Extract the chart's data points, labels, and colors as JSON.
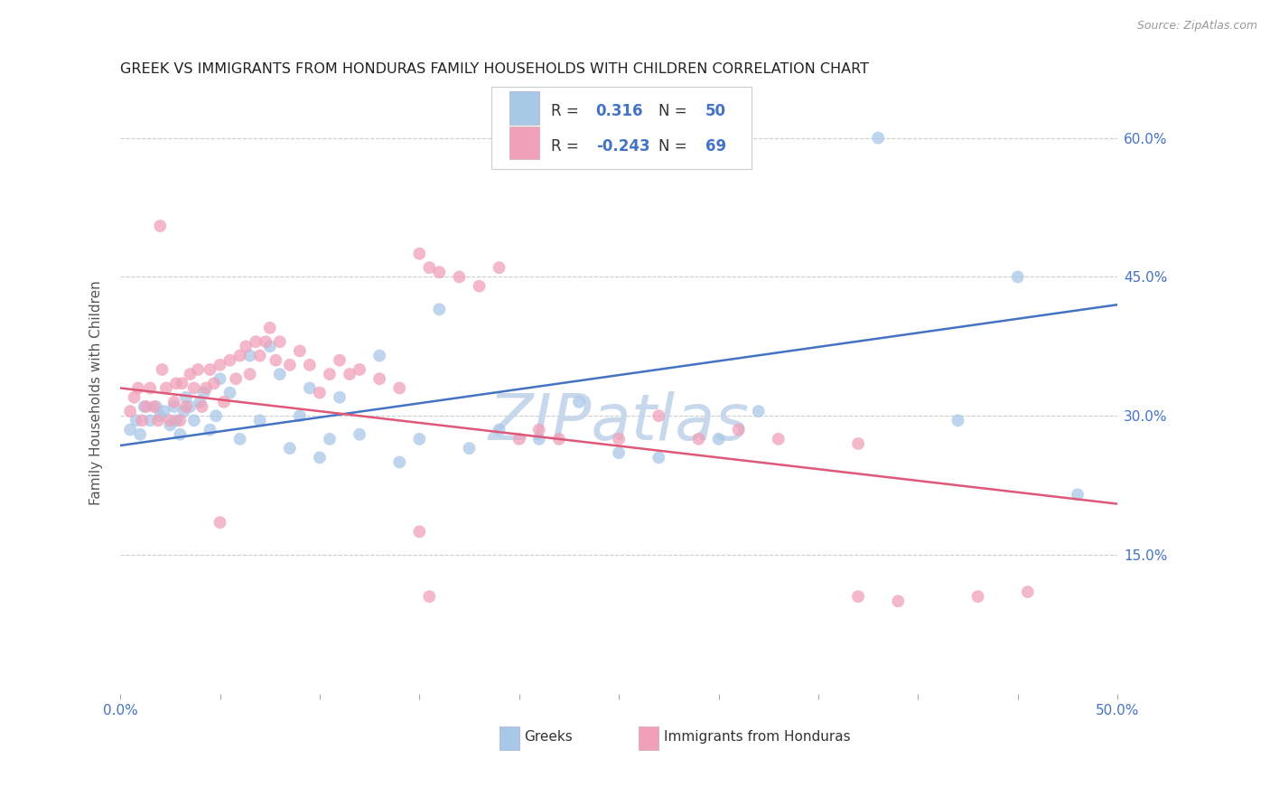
{
  "title": "GREEK VS IMMIGRANTS FROM HONDURAS FAMILY HOUSEHOLDS WITH CHILDREN CORRELATION CHART",
  "source": "Source: ZipAtlas.com",
  "ylabel": "Family Households with Children",
  "x_ticks": [
    0.0,
    0.05,
    0.1,
    0.15,
    0.2,
    0.25,
    0.3,
    0.35,
    0.4,
    0.45,
    0.5
  ],
  "y_ticks": [
    0.0,
    0.15,
    0.3,
    0.45,
    0.6
  ],
  "y_tick_labels_right": [
    "",
    "15.0%",
    "30.0%",
    "45.0%",
    "60.0%"
  ],
  "xlim": [
    0.0,
    0.5
  ],
  "ylim": [
    0.0,
    0.65
  ],
  "blue_R": "0.316",
  "blue_N": "50",
  "pink_R": "-0.243",
  "pink_N": "69",
  "blue_scatter_x": [
    0.005,
    0.008,
    0.01,
    0.012,
    0.015,
    0.018,
    0.02,
    0.022,
    0.025,
    0.027,
    0.028,
    0.03,
    0.032,
    0.033,
    0.035,
    0.037,
    0.04,
    0.042,
    0.045,
    0.048,
    0.05,
    0.055,
    0.06,
    0.065,
    0.07,
    0.075,
    0.08,
    0.085,
    0.09,
    0.095,
    0.1,
    0.105,
    0.11,
    0.12,
    0.13,
    0.14,
    0.15,
    0.16,
    0.175,
    0.19,
    0.21,
    0.23,
    0.25,
    0.27,
    0.3,
    0.32,
    0.38,
    0.42,
    0.45,
    0.48
  ],
  "blue_scatter_y": [
    0.285,
    0.295,
    0.28,
    0.31,
    0.295,
    0.31,
    0.3,
    0.305,
    0.29,
    0.31,
    0.295,
    0.28,
    0.305,
    0.32,
    0.31,
    0.295,
    0.315,
    0.325,
    0.285,
    0.3,
    0.34,
    0.325,
    0.275,
    0.365,
    0.295,
    0.375,
    0.345,
    0.265,
    0.3,
    0.33,
    0.255,
    0.275,
    0.32,
    0.28,
    0.365,
    0.25,
    0.275,
    0.415,
    0.265,
    0.285,
    0.275,
    0.315,
    0.26,
    0.255,
    0.275,
    0.305,
    0.6,
    0.295,
    0.45,
    0.215
  ],
  "pink_scatter_x": [
    0.005,
    0.007,
    0.009,
    0.011,
    0.013,
    0.015,
    0.017,
    0.019,
    0.021,
    0.023,
    0.025,
    0.027,
    0.028,
    0.03,
    0.031,
    0.033,
    0.035,
    0.037,
    0.039,
    0.041,
    0.043,
    0.045,
    0.047,
    0.05,
    0.052,
    0.055,
    0.058,
    0.06,
    0.063,
    0.065,
    0.068,
    0.07,
    0.073,
    0.075,
    0.078,
    0.08,
    0.085,
    0.09,
    0.095,
    0.1,
    0.105,
    0.11,
    0.115,
    0.12,
    0.13,
    0.14,
    0.15,
    0.155,
    0.16,
    0.17,
    0.18,
    0.19,
    0.2,
    0.21,
    0.22,
    0.25,
    0.27,
    0.29,
    0.31,
    0.33,
    0.37,
    0.39,
    0.02,
    0.05,
    0.155,
    0.43,
    0.455,
    0.15,
    0.37
  ],
  "pink_scatter_y": [
    0.305,
    0.32,
    0.33,
    0.295,
    0.31,
    0.33,
    0.31,
    0.295,
    0.35,
    0.33,
    0.295,
    0.315,
    0.335,
    0.295,
    0.335,
    0.31,
    0.345,
    0.33,
    0.35,
    0.31,
    0.33,
    0.35,
    0.335,
    0.355,
    0.315,
    0.36,
    0.34,
    0.365,
    0.375,
    0.345,
    0.38,
    0.365,
    0.38,
    0.395,
    0.36,
    0.38,
    0.355,
    0.37,
    0.355,
    0.325,
    0.345,
    0.36,
    0.345,
    0.35,
    0.34,
    0.33,
    0.475,
    0.46,
    0.455,
    0.45,
    0.44,
    0.46,
    0.275,
    0.285,
    0.275,
    0.275,
    0.3,
    0.275,
    0.285,
    0.275,
    0.105,
    0.1,
    0.505,
    0.185,
    0.105,
    0.105,
    0.11,
    0.175,
    0.27
  ],
  "blue_line_x": [
    0.0,
    0.5
  ],
  "blue_line_y": [
    0.268,
    0.42
  ],
  "pink_line_x": [
    0.0,
    0.5
  ],
  "pink_line_y": [
    0.33,
    0.205
  ],
  "blue_color": "#a8c8e8",
  "pink_color": "#f0a0b8",
  "blue_line_color": "#4472c4",
  "pink_line_color": "#e05878",
  "bg_color": "#ffffff",
  "watermark": "ZIPatlas",
  "watermark_color": "#c8d8ec",
  "title_fontsize": 11.5,
  "axis_label_fontsize": 11,
  "tick_fontsize": 11,
  "right_tick_color": "#4472c4",
  "legend_text_color": "#4472c4",
  "legend_label_color": "#333333"
}
